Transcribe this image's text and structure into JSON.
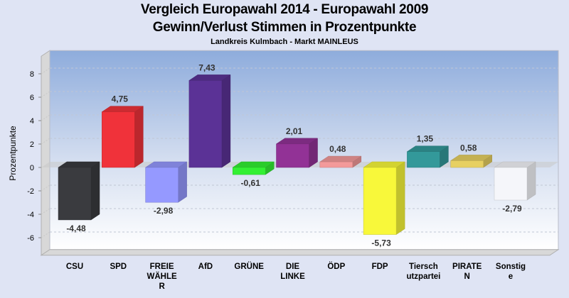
{
  "chart_data": {
    "type": "bar",
    "title": "Vergleich Europawahl 2014 - Europawahl 2009",
    "subtitle": "Gewinn/Verlust Stimmen in Prozentpunkte",
    "subsubtitle": "Landkreis Kulmbach - Markt MAINLEUS",
    "xlabel": "",
    "ylabel": "Prozentpunkte",
    "ylim": [
      -7.5,
      9.5
    ],
    "yticks": [
      8,
      6,
      4,
      2,
      0,
      -2,
      -4,
      -6
    ],
    "grid": true,
    "categories": [
      [
        "CSU"
      ],
      [
        "SPD"
      ],
      [
        "FREIE",
        "WÄHLE",
        "R"
      ],
      [
        "AfD"
      ],
      [
        "GRÜNE"
      ],
      [
        "DIE",
        "LINKE"
      ],
      [
        "ÖDP"
      ],
      [
        "FDP"
      ],
      [
        "Tiersch",
        "utzpartei"
      ],
      [
        "PIRATE",
        "N"
      ],
      [
        "Sonstig",
        "e"
      ]
    ],
    "values": [
      -4.48,
      4.75,
      -2.98,
      7.43,
      -0.61,
      2.01,
      0.48,
      -5.73,
      1.35,
      0.58,
      -2.79
    ],
    "value_labels": [
      "-4,48",
      "4,75",
      "-2,98",
      "7,43",
      "-0,61",
      "2,01",
      "0,48",
      "-5,73",
      "1,35",
      "0,58",
      "-2,79"
    ],
    "colors": [
      "#3a3b3f",
      "#f0323a",
      "#9599ff",
      "#5b3296",
      "#33f033",
      "#923296",
      "#f39a9a",
      "#f8f83a",
      "#33999a",
      "#e7d062",
      "#f5f6fa"
    ]
  }
}
